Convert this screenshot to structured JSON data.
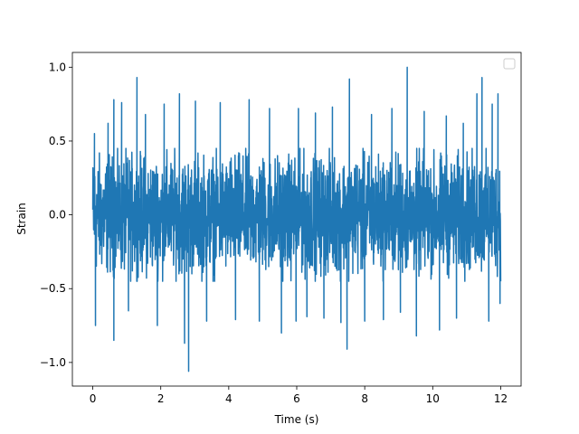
{
  "chart_data": {
    "type": "line",
    "title": "",
    "xlabel": "Time (s)",
    "ylabel": "Strain",
    "xlim": [
      -0.6,
      12.6
    ],
    "ylim": [
      -1.16,
      1.1
    ],
    "x_ticks": [
      {
        "value": 0,
        "label": "0"
      },
      {
        "value": 2,
        "label": "2"
      },
      {
        "value": 4,
        "label": "4"
      },
      {
        "value": 6,
        "label": "6"
      },
      {
        "value": 8,
        "label": "8"
      },
      {
        "value": 10,
        "label": "10"
      },
      {
        "value": 12,
        "label": "12"
      }
    ],
    "y_ticks": [
      {
        "value": -1.0,
        "label": "−1.0"
      },
      {
        "value": -0.5,
        "label": "−0.5"
      },
      {
        "value": 0.0,
        "label": "0.0"
      },
      {
        "value": 0.5,
        "label": "0.5"
      },
      {
        "value": 1.0,
        "label": "1.0"
      }
    ],
    "grid": false,
    "legend": {
      "placement": "top-right",
      "entries": []
    },
    "series": [
      {
        "color": "#1f77b4",
        "x_start": 0,
        "x_end": 12,
        "typical_band": [
          -0.45,
          0.45
        ],
        "peaks": [
          {
            "x": 0.05,
            "y": 0.55
          },
          {
            "x": 0.08,
            "y": -0.75
          },
          {
            "x": 0.45,
            "y": 0.62
          },
          {
            "x": 0.62,
            "y": 0.78
          },
          {
            "x": 0.62,
            "y": -0.85
          },
          {
            "x": 0.85,
            "y": 0.76
          },
          {
            "x": 1.05,
            "y": -0.65
          },
          {
            "x": 1.3,
            "y": 0.93
          },
          {
            "x": 1.55,
            "y": 0.68
          },
          {
            "x": 1.9,
            "y": -0.75
          },
          {
            "x": 2.1,
            "y": 0.75
          },
          {
            "x": 2.55,
            "y": 0.82
          },
          {
            "x": 2.7,
            "y": -0.87
          },
          {
            "x": 2.82,
            "y": -1.06
          },
          {
            "x": 3.02,
            "y": 0.77
          },
          {
            "x": 3.35,
            "y": -0.72
          },
          {
            "x": 3.75,
            "y": 0.76
          },
          {
            "x": 4.2,
            "y": -0.71
          },
          {
            "x": 4.6,
            "y": 0.78
          },
          {
            "x": 4.9,
            "y": -0.72
          },
          {
            "x": 5.2,
            "y": 0.72
          },
          {
            "x": 5.55,
            "y": -0.8
          },
          {
            "x": 5.98,
            "y": -0.72
          },
          {
            "x": 6.05,
            "y": 0.72
          },
          {
            "x": 6.3,
            "y": -0.69
          },
          {
            "x": 6.55,
            "y": 0.69
          },
          {
            "x": 6.8,
            "y": -0.7
          },
          {
            "x": 7.05,
            "y": 0.73
          },
          {
            "x": 7.3,
            "y": -0.73
          },
          {
            "x": 7.48,
            "y": -0.91
          },
          {
            "x": 7.55,
            "y": 0.92
          },
          {
            "x": 8.0,
            "y": -0.72
          },
          {
            "x": 8.2,
            "y": 0.68
          },
          {
            "x": 8.55,
            "y": -0.71
          },
          {
            "x": 8.8,
            "y": 0.72
          },
          {
            "x": 9.05,
            "y": -0.66
          },
          {
            "x": 9.25,
            "y": 1.0
          },
          {
            "x": 9.52,
            "y": -0.82
          },
          {
            "x": 9.75,
            "y": 0.7
          },
          {
            "x": 10.2,
            "y": -0.78
          },
          {
            "x": 10.4,
            "y": 0.67
          },
          {
            "x": 10.7,
            "y": -0.7
          },
          {
            "x": 10.9,
            "y": 0.62
          },
          {
            "x": 11.3,
            "y": 0.82
          },
          {
            "x": 11.45,
            "y": 0.93
          },
          {
            "x": 11.65,
            "y": -0.72
          },
          {
            "x": 11.75,
            "y": 0.75
          },
          {
            "x": 11.92,
            "y": 0.82
          },
          {
            "x": 11.98,
            "y": -0.6
          }
        ]
      }
    ]
  }
}
